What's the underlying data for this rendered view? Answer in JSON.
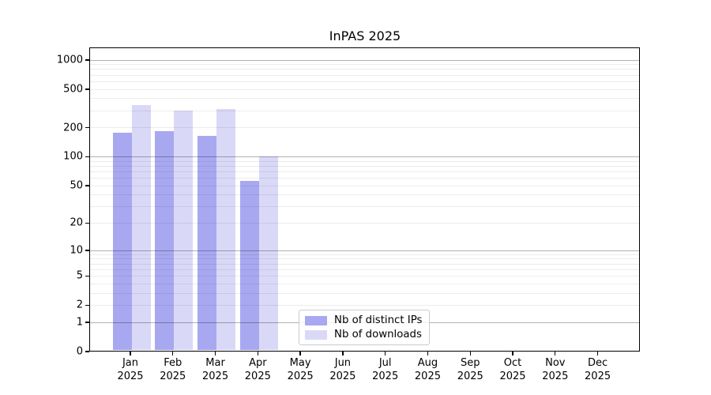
{
  "title": "InPAS 2025",
  "chart_data": {
    "type": "bar",
    "title": "InPAS 2025",
    "scale": "log10(value+1), symlog-like with 0 at axis bottom",
    "grid": "on, major lines at 1/10/100/1000, faint minor lines at 2-9 multiples",
    "legend_position": "lower center-right inside plot",
    "categories": [
      "Jan 2025",
      "Feb 2025",
      "Mar 2025",
      "Apr 2025",
      "May 2025",
      "Jun 2025",
      "Jul 2025",
      "Aug 2025",
      "Sep 2025",
      "Oct 2025",
      "Nov 2025",
      "Dec 2025"
    ],
    "series": [
      {
        "name": "Nb of distinct IPs",
        "color": "#a8a8f1",
        "values": [
          177,
          183,
          165,
          56,
          null,
          null,
          null,
          null,
          null,
          null,
          null,
          null
        ]
      },
      {
        "name": "Nb of downloads",
        "color": "#d9d9f7",
        "values": [
          341,
          300,
          308,
          100,
          null,
          null,
          null,
          null,
          null,
          null,
          null,
          null
        ]
      }
    ],
    "y_ticks": [
      1000,
      500,
      200,
      100,
      50,
      20,
      10,
      5,
      2,
      1,
      0
    ],
    "ylim": [
      0,
      1400
    ],
    "xlabel": "",
    "ylabel": ""
  },
  "colors": {
    "bar_dark": "#a8a8f1",
    "bar_light": "#d9d9f7",
    "grid_major": "#b3b3b3",
    "grid_minor": "#ececec",
    "legend_border": "#cccccc",
    "text": "#000000"
  },
  "legend": {
    "items": [
      {
        "label": "Nb of distinct IPs",
        "color": "#a8a8f1"
      },
      {
        "label": "Nb of downloads",
        "color": "#d9d9f7"
      }
    ]
  }
}
